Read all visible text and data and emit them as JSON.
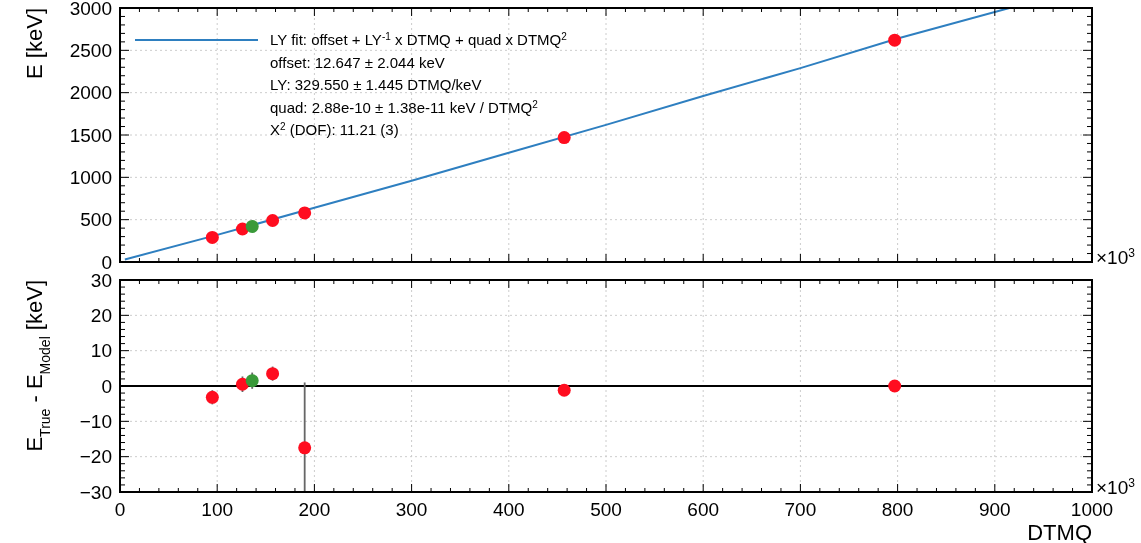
{
  "chart_data": [
    {
      "type": "scatter",
      "ylabel": "E [keV]",
      "xlim": [
        0,
        1000
      ],
      "xticks": [
        0,
        100,
        200,
        300,
        400,
        500,
        600,
        700,
        800,
        900,
        1000
      ],
      "ylim": [
        0,
        3000
      ],
      "yticks": [
        0,
        500,
        1000,
        1500,
        2000,
        2500,
        3000
      ],
      "tick_labels": "y",
      "grid": true,
      "legend": "top left",
      "marker": "circle",
      "annotations": [
        "offset: 12.647 ± 2.044 keV",
        "LY: 329.550 ± 1.445 DTMQ/keV",
        "quad: 2.88e-10 ± 1.38e-11 keV / DTMQ$^{2}$",
        "X$^{2}$ (DOF): 11.21 (3)",
        "×10$^{3}$"
      ],
      "series": [
        {
          "name": "LY fit: offset + LY$^{-1}$ x DTMQ + quad x DTMQ$^{2}$",
          "type": "line",
          "color": "#2e7fc0",
          "line_style": "solid",
          "marker": "none",
          "x": [
            5,
            100,
            200,
            300,
            400,
            500,
            600,
            700,
            800,
            915
          ],
          "values": [
            30,
            320,
            640,
            960,
            1290,
            1620,
            1960,
            2290,
            2640,
            3000
          ]
        },
        {
          "color": "#ff0d1f",
          "x": [
            95,
            126,
            157,
            190,
            457,
            797
          ],
          "values": [
            290,
            390,
            490,
            580,
            1470,
            2620
          ]
        },
        {
          "color": "#3a9a3a",
          "x": [
            136
          ],
          "values": [
            420
          ]
        }
      ]
    },
    {
      "type": "scatter",
      "xlabel": "DTMQ",
      "ylabel": "E$_{True}$ - E$_{Model}$ [keV]",
      "xlim": [
        0,
        1000
      ],
      "xticks": [
        0,
        100,
        200,
        300,
        400,
        500,
        600,
        700,
        800,
        900,
        1000
      ],
      "ylim": [
        -30,
        30
      ],
      "yticks": [
        {
          "value": -30,
          "label": "−30"
        },
        {
          "value": -20,
          "label": "−20"
        },
        {
          "value": -10,
          "label": "−10"
        },
        0,
        10,
        20,
        {
          "value": 30,
          "label": "30"
        }
      ],
      "grid": true,
      "marker": "circle",
      "annotations": [
        "×10$^{3}$"
      ],
      "ref_lines": [
        {
          "axis": "y",
          "value": 0,
          "color": "#000000"
        }
      ],
      "series": [
        {
          "color": "#ff0d1f",
          "x": [
            95,
            126,
            157,
            190,
            457,
            797
          ],
          "values": [
            -3.2,
            0.5,
            3.5,
            -17.5,
            -1.2,
            0
          ],
          "errors": [
            2,
            2.2,
            2,
            [
              -29.8,
              1
            ],
            null,
            null
          ]
        },
        {
          "color": "#3a9a3a",
          "x": [
            136
          ],
          "values": [
            1.5
          ],
          "errors": [
            2.3
          ]
        }
      ]
    }
  ]
}
